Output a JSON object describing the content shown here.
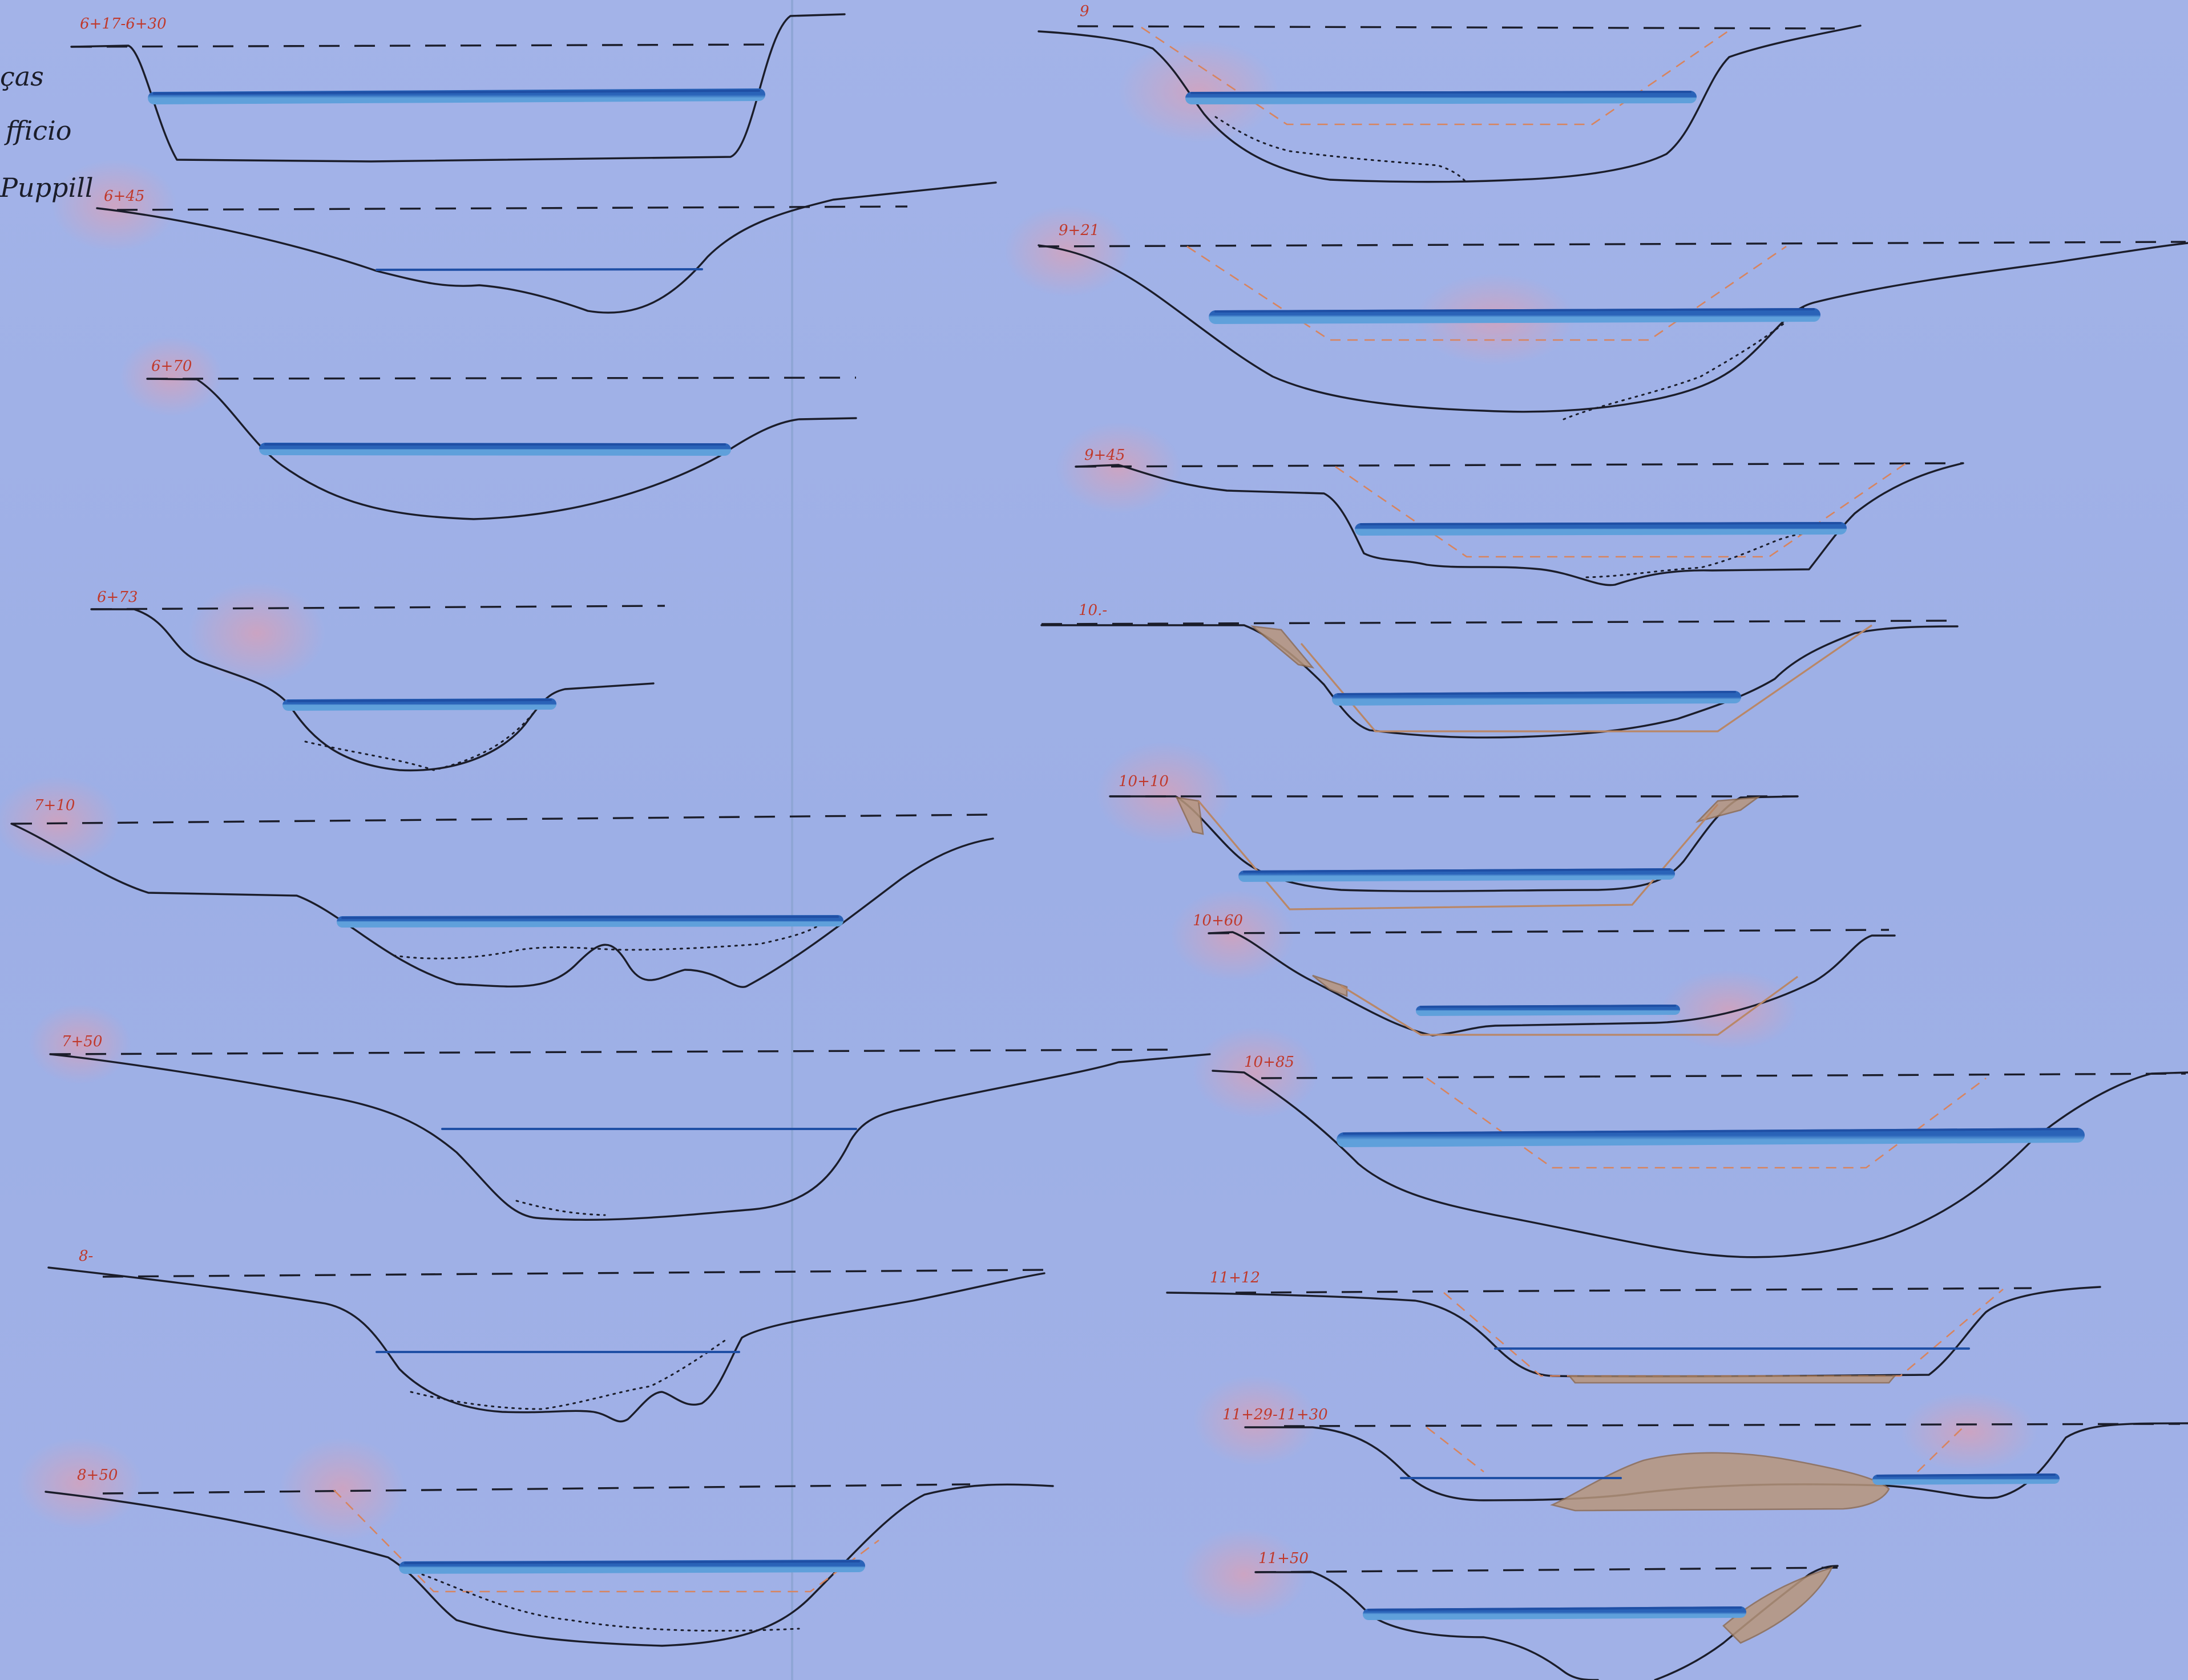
{
  "notes": {
    "line1": "ças",
    "line2": "fficio",
    "line3": "Puppill"
  },
  "colors": {
    "paper": "#9fb0e6",
    "ink": "#1b1d2a",
    "water": "#2f6fc2",
    "design_line": "#d8845e",
    "fill_material": "#b8967d",
    "station_label": "#c0392b",
    "stain": "#e8909a"
  },
  "sections": [
    {
      "label": "6+17-6+30"
    },
    {
      "label": "6+45"
    },
    {
      "label": "6+70"
    },
    {
      "label": "6+73"
    },
    {
      "label": "7+10"
    },
    {
      "label": "7+50"
    },
    {
      "label": "8-"
    },
    {
      "label": "8+50"
    },
    {
      "label": "9"
    },
    {
      "label": "9+21"
    },
    {
      "label": "9+45"
    },
    {
      "label": "10.-"
    },
    {
      "label": "10+10"
    },
    {
      "label": "10+60"
    },
    {
      "label": "10+85"
    },
    {
      "label": "11+12"
    },
    {
      "label": "11+29-11+30"
    },
    {
      "label": "11+50"
    }
  ]
}
